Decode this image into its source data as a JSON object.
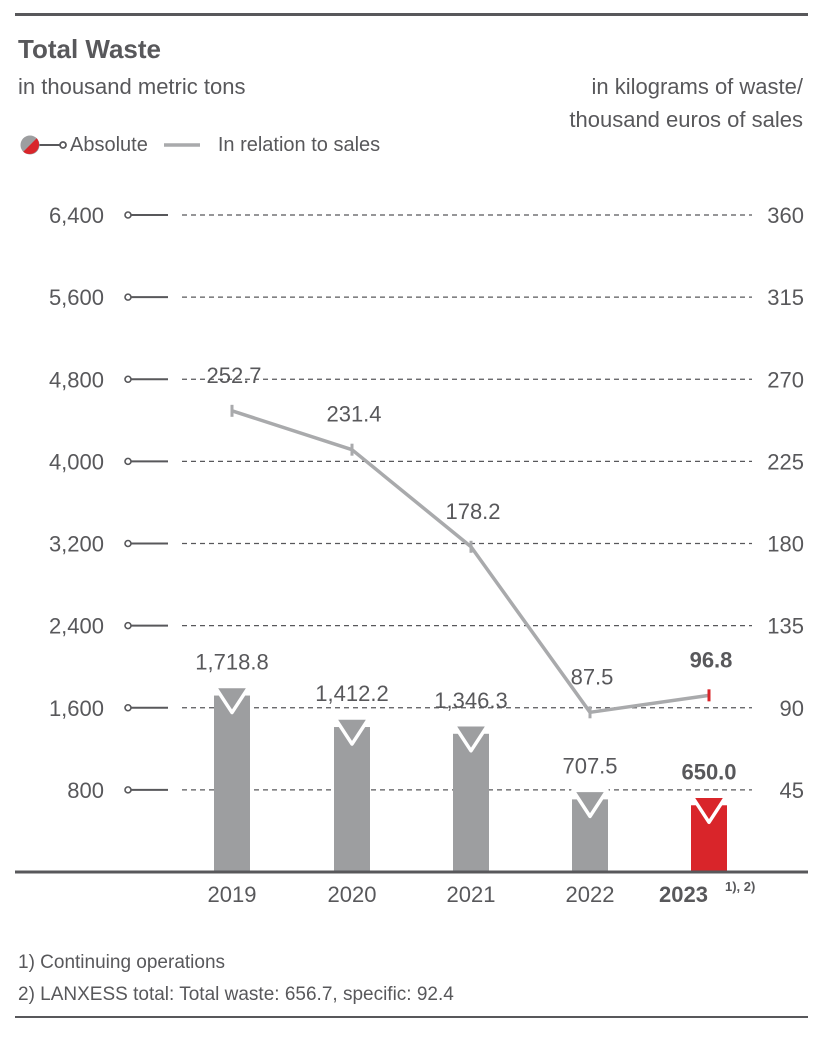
{
  "header": {
    "title": "Total Waste",
    "left_unit": "in thousand metric tons",
    "right_unit_line1": "in kilograms of waste/",
    "right_unit_line2": "thousand euros of sales"
  },
  "legend": {
    "absolute_label": "Absolute",
    "relative_label": "In relation to sales"
  },
  "colors": {
    "bar_gray": "#9d9ea0",
    "highlight_red": "#d9252a",
    "line_gray": "#a9aaac",
    "text_gray": "#58585b",
    "grid": "#58585b"
  },
  "chart_data": {
    "type": "bar+line",
    "title": "Total Waste",
    "categories": [
      "2019",
      "2020",
      "2021",
      "2022",
      "2023"
    ],
    "category_superscripts": [
      "",
      "",
      "",
      "",
      "1), 2)"
    ],
    "highlight_index": 4,
    "left_axis": {
      "label": "in thousand metric tons",
      "ylim": [
        0,
        6400
      ],
      "ticks": [
        800,
        1600,
        2400,
        3200,
        4000,
        4800,
        5600,
        6400
      ],
      "tick_labels": [
        "800",
        "1,600",
        "2,400",
        "3,200",
        "4,000",
        "4,800",
        "5,600",
        "6,400"
      ]
    },
    "right_axis": {
      "label": "in kilograms of waste/thousand euros of sales",
      "ylim": [
        0,
        360
      ],
      "ticks": [
        45,
        90,
        135,
        180,
        225,
        270,
        315,
        360
      ],
      "tick_labels": [
        "45",
        "90",
        "135",
        "180",
        "225",
        "270",
        "315",
        "360"
      ]
    },
    "series": [
      {
        "name": "Absolute",
        "type": "bar",
        "axis": "left",
        "values": [
          1718.8,
          1412.2,
          1346.3,
          707.5,
          650.0
        ],
        "labels": [
          "1,718.8",
          "1,412.2",
          "1,346.3",
          "707.5",
          "650.0"
        ]
      },
      {
        "name": "In relation to sales",
        "type": "line",
        "axis": "right",
        "values": [
          252.7,
          231.4,
          178.2,
          87.5,
          96.8
        ],
        "labels": [
          "252.7",
          "231.4",
          "178.2",
          "87.5",
          "96.8"
        ]
      }
    ],
    "grid": true
  },
  "footnotes": [
    "1) Continuing operations",
    "2) LANXESS total: Total waste: 656.7, specific: 92.4"
  ]
}
